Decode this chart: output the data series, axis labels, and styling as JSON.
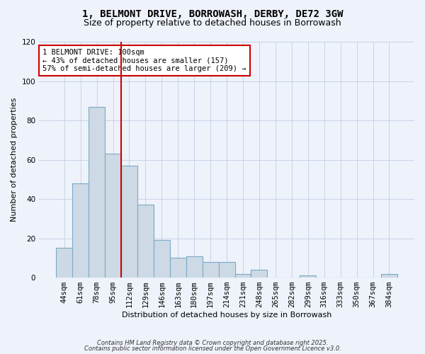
{
  "title": "1, BELMONT DRIVE, BORROWASH, DERBY, DE72 3GW",
  "subtitle": "Size of property relative to detached houses in Borrowash",
  "xlabel": "Distribution of detached houses by size in Borrowash",
  "ylabel": "Number of detached properties",
  "bin_labels": [
    "44sqm",
    "61sqm",
    "78sqm",
    "95sqm",
    "112sqm",
    "129sqm",
    "146sqm",
    "163sqm",
    "180sqm",
    "197sqm",
    "214sqm",
    "231sqm",
    "248sqm",
    "265sqm",
    "282sqm",
    "299sqm",
    "316sqm",
    "333sqm",
    "350sqm",
    "367sqm",
    "384sqm"
  ],
  "bar_heights": [
    15,
    48,
    87,
    63,
    57,
    37,
    19,
    10,
    11,
    8,
    8,
    2,
    4,
    0,
    0,
    1,
    0,
    0,
    0,
    0,
    2
  ],
  "bar_color": "#cdd9e5",
  "bar_edge_color": "#7aaac8",
  "vline_x": 3.5,
  "vline_color": "#cc0000",
  "ylim": [
    0,
    120
  ],
  "yticks": [
    0,
    20,
    40,
    60,
    80,
    100,
    120
  ],
  "annotation_text": "1 BELMONT DRIVE: 100sqm\n← 43% of detached houses are smaller (157)\n57% of semi-detached houses are larger (209) →",
  "annotation_box_color": "#ffffff",
  "annotation_box_edge_color": "#cc0000",
  "footer_line1": "Contains HM Land Registry data © Crown copyright and database right 2025.",
  "footer_line2": "Contains public sector information licensed under the Open Government Licence v3.0.",
  "bg_color": "#eef2fa",
  "grid_color": "#c8d4e8",
  "title_fontsize": 10,
  "subtitle_fontsize": 9,
  "annotation_fontsize": 7.5,
  "axis_label_fontsize": 8,
  "tick_fontsize": 7.5,
  "footer_fontsize": 6
}
